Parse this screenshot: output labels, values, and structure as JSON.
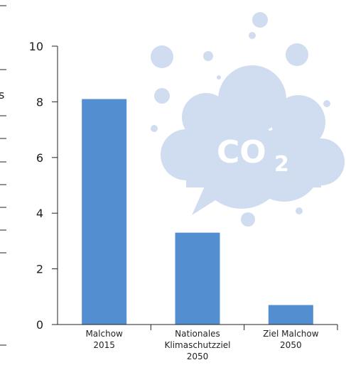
{
  "chart_data": {
    "type": "bar",
    "categories": [
      [
        "Malchow",
        "2015"
      ],
      [
        "Nationales",
        "Klimaschutzziel",
        "2050"
      ],
      [
        "Ziel Malchow",
        "2050"
      ]
    ],
    "values": [
      8.1,
      3.3,
      0.7
    ],
    "ylim": [
      0,
      10
    ],
    "yticks": [
      0,
      2,
      4,
      6,
      8,
      10
    ],
    "grid": false,
    "bar_color": "#538fd0"
  },
  "illustration": {
    "cloud_color": "#d0dcef",
    "co2_main": "CO",
    "co2_sub": "2"
  }
}
